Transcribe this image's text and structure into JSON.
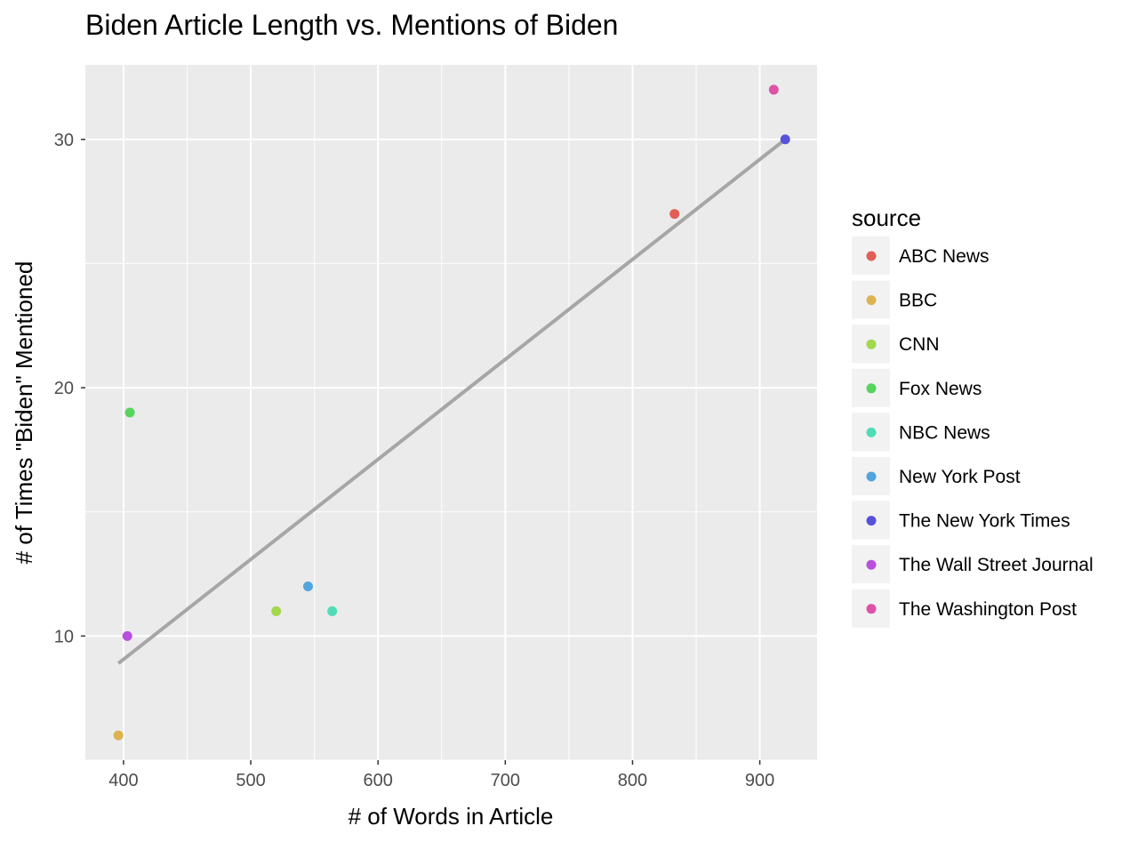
{
  "chart_data": {
    "type": "scatter",
    "title": "Biden Article Length vs. Mentions of Biden",
    "xlabel": "# of Words in Article",
    "ylabel": "# of Times \"Biden\" Mentioned",
    "xlim": [
      370,
      945
    ],
    "ylim": [
      5,
      33
    ],
    "x_ticks": [
      400,
      500,
      600,
      700,
      800,
      900
    ],
    "y_ticks": [
      10,
      20,
      30
    ],
    "grid": true,
    "legend": {
      "title": "source",
      "placement": "right",
      "entries": [
        {
          "name": "ABC News",
          "color": "#E15F55"
        },
        {
          "name": "BBC",
          "color": "#DBB350"
        },
        {
          "name": "CNN",
          "color": "#A3D74D"
        },
        {
          "name": "Fox News",
          "color": "#57D45E"
        },
        {
          "name": "NBC News",
          "color": "#4FDDB5"
        },
        {
          "name": "New York Post",
          "color": "#52A4DD"
        },
        {
          "name": "The New York Times",
          "color": "#5752DA"
        },
        {
          "name": "The Wall Street Journal",
          "color": "#B950DD"
        },
        {
          "name": "The Washington Post",
          "color": "#DE52A6"
        }
      ]
    },
    "points": [
      {
        "source": "ABC News",
        "x": 833,
        "y": 27
      },
      {
        "source": "BBC",
        "x": 396,
        "y": 6
      },
      {
        "source": "CNN",
        "x": 520,
        "y": 11
      },
      {
        "source": "Fox News",
        "x": 405,
        "y": 19
      },
      {
        "source": "NBC News",
        "x": 564,
        "y": 11
      },
      {
        "source": "New York Post",
        "x": 545,
        "y": 12
      },
      {
        "source": "The New York Times",
        "x": 920,
        "y": 30
      },
      {
        "source": "The Wall Street Journal",
        "x": 403,
        "y": 10
      },
      {
        "source": "The Washington Post",
        "x": 911,
        "y": 32
      }
    ],
    "trend_line": {
      "x": [
        396,
        920
      ],
      "y": [
        8.9,
        30.0
      ],
      "color": "#A6A6A6"
    }
  }
}
